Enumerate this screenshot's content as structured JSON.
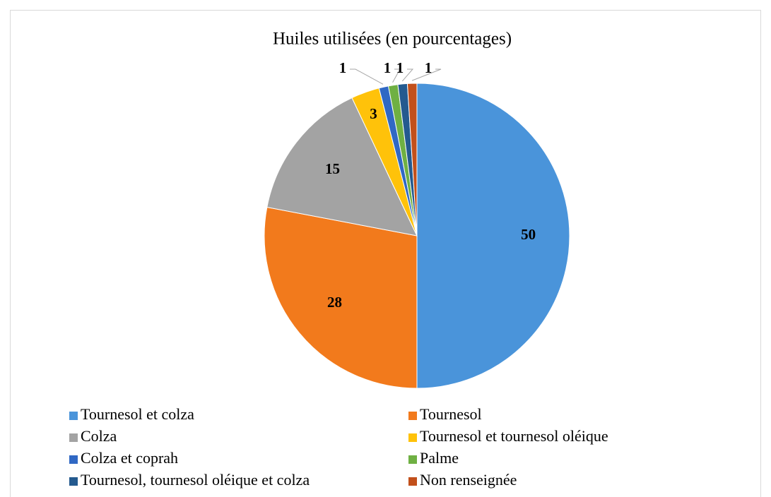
{
  "chart_data": {
    "type": "pie",
    "title": "Huiles utilisées (en pourcentages)",
    "categories": [
      "Tournesol et colza",
      "Tournesol",
      "Colza",
      "Tournesol et tournesol oléique",
      "Colza et coprah",
      "Palme",
      "Tournesol, tournesol oléique et colza",
      "Non renseignée"
    ],
    "values": [
      50,
      28,
      15,
      3,
      1,
      1,
      1,
      1
    ],
    "colors": [
      "#4a94da",
      "#f27a1c",
      "#a3a3a3",
      "#ffc20a",
      "#3068c4",
      "#6fb043",
      "#245a8f",
      "#c2501b"
    ],
    "legend": "bottom"
  }
}
